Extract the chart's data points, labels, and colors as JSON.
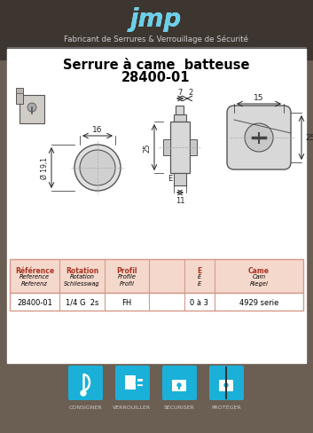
{
  "bg_color": "#6b5e52",
  "white_panel_color": "#ffffff",
  "title_line1": "Serrure à came  batteuse",
  "title_line2": "28400-01",
  "subtitle": "Fabricant de Serrures & Verrouillage de Sécurité",
  "logo_text": "jmp",
  "dim_16": "16",
  "dim_19": "Ø 19,1",
  "dim_7": "7",
  "dim_2": "2",
  "dim_25_left": "25",
  "dim_11": "11",
  "dim_15": "15",
  "dim_25_right": "25",
  "dim_E": "E",
  "header_col1_l1": "Référence",
  "header_col1_l2": "Reference",
  "header_col1_l3": "Referenz",
  "header_col2_l1": "Rotation",
  "header_col2_l2": "Rotation",
  "header_col2_l3": "Schliesswag",
  "header_col3_l1": "Profil",
  "header_col3_l2": "Profile",
  "header_col3_l3": "Profil",
  "header_col5_l1": "E",
  "header_col5_l2": "E",
  "header_col5_l3": "E",
  "header_col6_l1": "Came",
  "header_col6_l2": "Cam",
  "header_col6_l3": "Riegel",
  "row_col1": "28400-01",
  "row_col2": "1/4 G  2s",
  "row_col3": "FH",
  "row_col5": "0 à 3",
  "row_col6": "4929 serie",
  "icons": [
    "CONSIGNER",
    "VERROUILLER",
    "SÉCURISER",
    "PROTÉGER"
  ],
  "icon_color": "#1ab0d8",
  "header_row_bg": "#f5d8cc",
  "table_border_color": "#d4998a",
  "draw_line_color": "#555555",
  "dim_line_color": "#222222"
}
